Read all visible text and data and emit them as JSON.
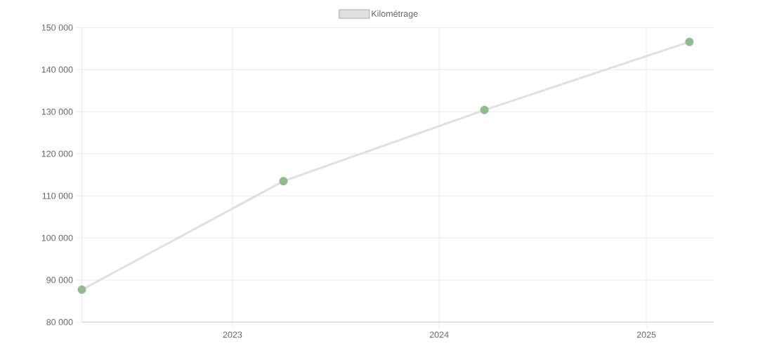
{
  "chart_data": {
    "type": "line",
    "x": [
      "2022-04-10",
      "2023-04-01",
      "2024-03-21",
      "2025-03-18"
    ],
    "series": [
      {
        "name": "Kilométrage",
        "color": "#e0e0e0",
        "colors": [
          "#8fbb8f",
          "#8fbb8f",
          "#8fbb8f",
          "#8fbb8f"
        ],
        "values": [
          87700,
          113500,
          130400,
          146600
        ]
      }
    ],
    "xlim": [
      "2022-04-10",
      "2025-04-30"
    ],
    "xticks": [
      {
        "value": "2023-01-01",
        "label": "2023"
      },
      {
        "value": "2024-01-01",
        "label": "2024"
      },
      {
        "value": "2025-01-01",
        "label": "2025"
      }
    ],
    "ylim": [
      80000,
      150000
    ],
    "yticks": [
      {
        "value": 80000,
        "label": "80 000"
      },
      {
        "value": 90000,
        "label": "90 000"
      },
      {
        "value": 100000,
        "label": "100 000"
      },
      {
        "value": 110000,
        "label": "110 000"
      },
      {
        "value": 120000,
        "label": "120 000"
      },
      {
        "value": 130000,
        "label": "130 000"
      },
      {
        "value": 140000,
        "label": "140 000"
      },
      {
        "value": 150000,
        "label": "150 000"
      }
    ],
    "grid": true,
    "legend": "top",
    "marker": "circle",
    "line_style": "solid"
  }
}
